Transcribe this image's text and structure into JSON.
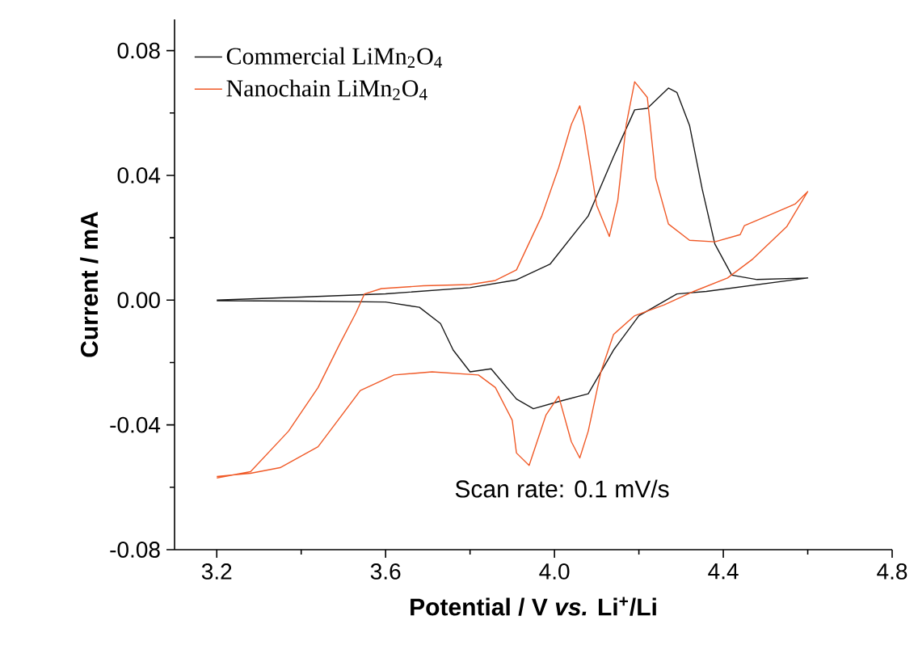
{
  "chart_data": {
    "type": "line",
    "xlabel": "**Potential / V *vs.* Li$^{+}$/Li**",
    "ylabel": "Current / mA",
    "xlim": [
      3.1,
      4.8
    ],
    "ylim": [
      -0.08,
      0.09
    ],
    "xticks": [
      {
        "value": 3.2,
        "label": "3.2"
      },
      {
        "value": 3.6,
        "label": "3.6"
      },
      {
        "value": 4.0,
        "label": "4.0"
      },
      {
        "value": 4.4,
        "label": "4.4"
      },
      {
        "value": 4.8,
        "label": "4.8"
      }
    ],
    "yticks": [
      {
        "value": -0.08,
        "label": "-0.08"
      },
      {
        "value": -0.04,
        "label": "-0.04"
      },
      {
        "value": 0.0,
        "label": "0.00"
      },
      {
        "value": 0.04,
        "label": "0.04"
      },
      {
        "value": 0.08,
        "label": "0.08"
      }
    ],
    "legend": "top left",
    "annotations": [
      "Scan rate: 0.1 mV/s"
    ],
    "series": [
      {
        "name": "Commercial LiMn$_{2}$O$_{4}$",
        "color": "#1a1a1a",
        "x": [
          3.2,
          3.4,
          3.6,
          3.8,
          3.91,
          3.99,
          4.08,
          4.14,
          4.19,
          4.22,
          4.27,
          4.29,
          4.32,
          4.35,
          4.38,
          4.42,
          4.48,
          4.6,
          4.36,
          4.29,
          4.2,
          4.14,
          4.08,
          4.01,
          3.95,
          3.91,
          3.85,
          3.8,
          3.76,
          3.73,
          3.68,
          3.6,
          3.4,
          3.2
        ],
        "values": [
          0.0,
          0.001,
          0.002,
          0.004,
          0.0065,
          0.0116,
          0.027,
          0.046,
          0.061,
          0.0615,
          0.068,
          0.0666,
          0.056,
          0.0356,
          0.018,
          0.008,
          0.0066,
          0.0071,
          0.0028,
          0.002,
          -0.005,
          -0.016,
          -0.03,
          -0.0325,
          -0.0348,
          -0.0317,
          -0.022,
          -0.023,
          -0.016,
          -0.0075,
          -0.0023,
          -0.0006,
          -0.0003,
          -0.0002
        ]
      },
      {
        "name": "Nanochain LiMn$_{2}$O$_{4}$",
        "color": "#f05a28",
        "x": [
          3.2,
          3.28,
          3.37,
          3.44,
          3.49,
          3.53,
          3.55,
          3.59,
          3.69,
          3.8,
          3.86,
          3.91,
          3.97,
          4.01,
          4.04,
          4.06,
          4.07,
          4.1,
          4.13,
          4.15,
          4.17,
          4.19,
          4.22,
          4.24,
          4.27,
          4.32,
          4.38,
          4.44,
          4.45,
          4.51,
          4.57,
          4.6,
          4.55,
          4.47,
          4.41,
          4.33,
          4.26,
          4.19,
          4.14,
          4.11,
          4.08,
          4.06,
          4.04,
          4.01,
          3.98,
          3.94,
          3.91,
          3.9,
          3.86,
          3.82,
          3.71,
          3.62,
          3.54,
          3.44,
          3.35,
          3.28,
          3.2
        ],
        "values": [
          -0.057,
          -0.055,
          -0.042,
          -0.028,
          -0.0144,
          -0.004,
          0.002,
          0.0037,
          0.0046,
          0.005,
          0.0063,
          0.0097,
          0.027,
          0.0425,
          0.0563,
          0.0623,
          0.056,
          0.0304,
          0.0204,
          0.032,
          0.0563,
          0.07,
          0.065,
          0.039,
          0.0244,
          0.0192,
          0.0187,
          0.021,
          0.0239,
          0.0273,
          0.0308,
          0.0348,
          0.0235,
          0.0132,
          0.0071,
          0.0028,
          -0.0015,
          -0.005,
          -0.011,
          -0.023,
          -0.042,
          -0.0506,
          -0.0454,
          -0.0308,
          -0.0368,
          -0.053,
          -0.049,
          -0.0385,
          -0.028,
          -0.024,
          -0.023,
          -0.024,
          -0.029,
          -0.047,
          -0.0537,
          -0.0555,
          -0.0565
        ]
      }
    ]
  }
}
